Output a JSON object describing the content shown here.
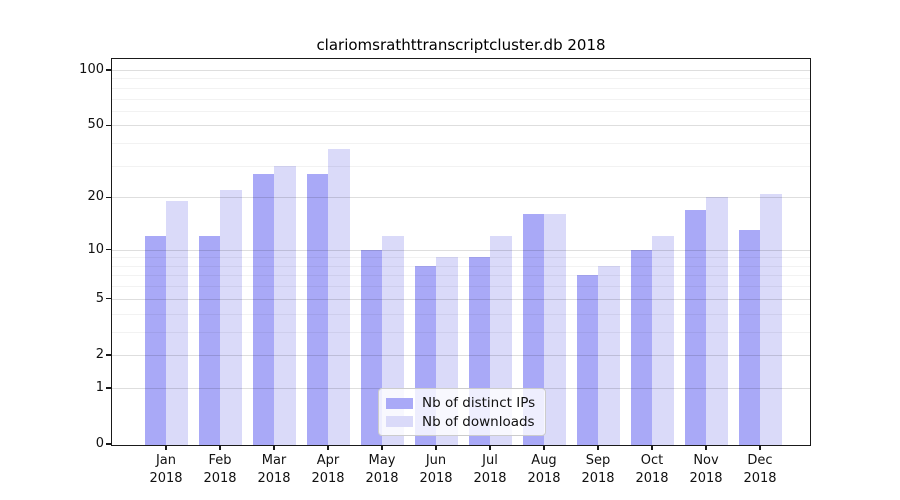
{
  "title": "clariomsrathttranscriptcluster.db 2018",
  "chart_data": {
    "type": "bar",
    "title": "clariomsrathttranscriptcluster.db 2018",
    "categories": [
      "Jan",
      "Feb",
      "Mar",
      "Apr",
      "May",
      "Jun",
      "Jul",
      "Aug",
      "Sep",
      "Oct",
      "Nov",
      "Dec"
    ],
    "x_year": "2018",
    "series": [
      {
        "name": "Nb of distinct IPs",
        "color": "#a9a9f7",
        "values": [
          12,
          12,
          27,
          27,
          10,
          8,
          9,
          16,
          7,
          10,
          17,
          13
        ]
      },
      {
        "name": "Nb of downloads",
        "color": "#dadaf9",
        "values": [
          19,
          22,
          30,
          37,
          12,
          9,
          12,
          16,
          8,
          12,
          20,
          21
        ]
      }
    ],
    "y_axis": {
      "scale": "log10(1+value)",
      "ticks": [
        100,
        50,
        20,
        10,
        5,
        2,
        1,
        0
      ],
      "major_gridlines": [
        1,
        2,
        5,
        10,
        20,
        50,
        100
      ],
      "minor_gridlines": [
        3,
        4,
        6,
        7,
        8,
        9,
        30,
        40,
        60,
        70,
        80,
        90
      ],
      "ylim": [
        0,
        115
      ]
    },
    "legend": {
      "entries": [
        "Nb of distinct IPs",
        "Nb of downloads"
      ],
      "position": "lower center"
    },
    "grid": true
  }
}
